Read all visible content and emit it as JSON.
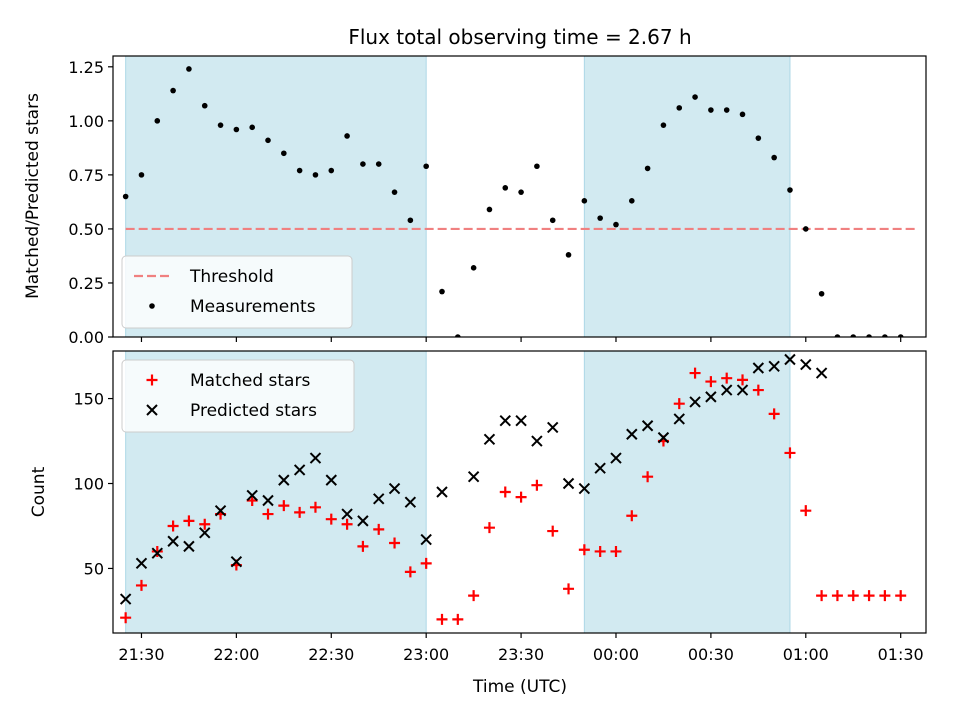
{
  "chart_data": [
    {
      "type": "scatter",
      "title": "Flux total observing time = 2.67 h",
      "xlabel": "",
      "ylabel": "Matched/Predicted stars",
      "xlim": [
        "21:21",
        "01:38"
      ],
      "ylim": [
        0,
        1.3
      ],
      "yticks": [
        0.0,
        0.25,
        0.5,
        0.75,
        1.0,
        1.25
      ],
      "ytick_labels": [
        "0.00",
        "0.25",
        "0.50",
        "0.75",
        "1.00",
        "1.25"
      ],
      "legend": "bottom-left",
      "grid": false,
      "shaded_spans": [
        [
          "21:25",
          "23:00"
        ],
        [
          "23:50",
          "00:55"
        ]
      ],
      "threshold": {
        "name": "Threshold",
        "value": 0.5,
        "x_range": [
          "21:25",
          "01:35"
        ],
        "color": "#f08080",
        "style": "dashed"
      },
      "series": [
        {
          "name": "Measurements",
          "color": "#000000",
          "marker": "dot",
          "points": [
            [
              "21:25",
              0.65
            ],
            [
              "21:30",
              0.75
            ],
            [
              "21:35",
              1.0
            ],
            [
              "21:40",
              1.14
            ],
            [
              "21:45",
              1.24
            ],
            [
              "21:50",
              1.07
            ],
            [
              "21:55",
              0.98
            ],
            [
              "22:00",
              0.96
            ],
            [
              "22:05",
              0.97
            ],
            [
              "22:10",
              0.91
            ],
            [
              "22:15",
              0.85
            ],
            [
              "22:20",
              0.77
            ],
            [
              "22:25",
              0.75
            ],
            [
              "22:30",
              0.77
            ],
            [
              "22:35",
              0.93
            ],
            [
              "22:40",
              0.8
            ],
            [
              "22:45",
              0.8
            ],
            [
              "22:50",
              0.67
            ],
            [
              "22:55",
              0.54
            ],
            [
              "23:00",
              0.79
            ],
            [
              "23:05",
              0.21
            ],
            [
              "23:10",
              0.0
            ],
            [
              "23:15",
              0.32
            ],
            [
              "23:20",
              0.59
            ],
            [
              "23:25",
              0.69
            ],
            [
              "23:30",
              0.67
            ],
            [
              "23:35",
              0.79
            ],
            [
              "23:40",
              0.54
            ],
            [
              "23:45",
              0.38
            ],
            [
              "23:50",
              0.63
            ],
            [
              "23:55",
              0.55
            ],
            [
              "00:00",
              0.52
            ],
            [
              "00:05",
              0.63
            ],
            [
              "00:10",
              0.78
            ],
            [
              "00:15",
              0.98
            ],
            [
              "00:20",
              1.06
            ],
            [
              "00:25",
              1.11
            ],
            [
              "00:30",
              1.05
            ],
            [
              "00:35",
              1.05
            ],
            [
              "00:40",
              1.03
            ],
            [
              "00:45",
              0.92
            ],
            [
              "00:50",
              0.83
            ],
            [
              "00:55",
              0.68
            ],
            [
              "01:00",
              0.5
            ],
            [
              "01:05",
              0.2
            ],
            [
              "01:10",
              0.0
            ],
            [
              "01:15",
              0.0
            ],
            [
              "01:20",
              0.0
            ],
            [
              "01:25",
              0.0
            ],
            [
              "01:30",
              0.0
            ]
          ]
        }
      ]
    },
    {
      "type": "scatter",
      "title": "",
      "xlabel": "Time (UTC)",
      "ylabel": "Count",
      "xlim": [
        "21:21",
        "01:38"
      ],
      "ylim": [
        12,
        178
      ],
      "yticks": [
        50,
        100,
        150
      ],
      "ytick_labels": [
        "50",
        "100",
        "150"
      ],
      "xticks": [
        "21:30",
        "22:00",
        "22:30",
        "23:00",
        "23:30",
        "00:00",
        "00:30",
        "01:00",
        "01:30"
      ],
      "xtick_labels": [
        "21:30",
        "22:00",
        "22:30",
        "23:00",
        "23:30",
        "00:00",
        "00:30",
        "01:00",
        "01:30"
      ],
      "legend": "top-left",
      "grid": false,
      "shaded_spans": [
        [
          "21:25",
          "23:00"
        ],
        [
          "23:50",
          "00:55"
        ]
      ],
      "series": [
        {
          "name": "Matched stars",
          "color": "#ff0000",
          "marker": "plus",
          "points": [
            [
              "21:25",
              21
            ],
            [
              "21:30",
              40
            ],
            [
              "21:35",
              60
            ],
            [
              "21:40",
              75
            ],
            [
              "21:45",
              78
            ],
            [
              "21:50",
              76
            ],
            [
              "21:55",
              82
            ],
            [
              "22:00",
              52
            ],
            [
              "22:05",
              90
            ],
            [
              "22:10",
              82
            ],
            [
              "22:15",
              87
            ],
            [
              "22:20",
              83
            ],
            [
              "22:25",
              86
            ],
            [
              "22:30",
              79
            ],
            [
              "22:35",
              76
            ],
            [
              "22:40",
              63
            ],
            [
              "22:45",
              73
            ],
            [
              "22:50",
              65
            ],
            [
              "22:55",
              48
            ],
            [
              "23:00",
              53
            ],
            [
              "23:05",
              20
            ],
            [
              "23:10",
              20
            ],
            [
              "23:15",
              34
            ],
            [
              "23:20",
              74
            ],
            [
              "23:25",
              95
            ],
            [
              "23:30",
              92
            ],
            [
              "23:35",
              99
            ],
            [
              "23:40",
              72
            ],
            [
              "23:45",
              38
            ],
            [
              "23:50",
              61
            ],
            [
              "23:55",
              60
            ],
            [
              "00:00",
              60
            ],
            [
              "00:05",
              81
            ],
            [
              "00:10",
              104
            ],
            [
              "00:15",
              125
            ],
            [
              "00:20",
              147
            ],
            [
              "00:25",
              165
            ],
            [
              "00:30",
              160
            ],
            [
              "00:35",
              162
            ],
            [
              "00:40",
              161
            ],
            [
              "00:45",
              155
            ],
            [
              "00:50",
              141
            ],
            [
              "00:55",
              118
            ],
            [
              "01:00",
              84
            ],
            [
              "01:05",
              34
            ],
            [
              "01:10",
              34
            ],
            [
              "01:15",
              34
            ],
            [
              "01:20",
              34
            ],
            [
              "01:25",
              34
            ],
            [
              "01:30",
              34
            ]
          ]
        },
        {
          "name": "Predicted stars",
          "color": "#000000",
          "marker": "x",
          "points": [
            [
              "21:25",
              32
            ],
            [
              "21:30",
              53
            ],
            [
              "21:35",
              59
            ],
            [
              "21:40",
              66
            ],
            [
              "21:45",
              63
            ],
            [
              "21:50",
              71
            ],
            [
              "21:55",
              84
            ],
            [
              "22:00",
              54
            ],
            [
              "22:05",
              93
            ],
            [
              "22:10",
              90
            ],
            [
              "22:15",
              102
            ],
            [
              "22:20",
              108
            ],
            [
              "22:25",
              115
            ],
            [
              "22:30",
              102
            ],
            [
              "22:35",
              82
            ],
            [
              "22:40",
              78
            ],
            [
              "22:45",
              91
            ],
            [
              "22:50",
              97
            ],
            [
              "22:55",
              89
            ],
            [
              "23:00",
              67
            ],
            [
              "23:05",
              95
            ],
            [
              "23:15",
              104
            ],
            [
              "23:20",
              126
            ],
            [
              "23:25",
              137
            ],
            [
              "23:30",
              137
            ],
            [
              "23:35",
              125
            ],
            [
              "23:40",
              133
            ],
            [
              "23:45",
              100
            ],
            [
              "23:50",
              97
            ],
            [
              "23:55",
              109
            ],
            [
              "00:00",
              115
            ],
            [
              "00:05",
              129
            ],
            [
              "00:10",
              134
            ],
            [
              "00:15",
              127
            ],
            [
              "00:20",
              138
            ],
            [
              "00:25",
              148
            ],
            [
              "00:30",
              151
            ],
            [
              "00:35",
              155
            ],
            [
              "00:40",
              155
            ],
            [
              "00:45",
              168
            ],
            [
              "00:50",
              169
            ],
            [
              "00:55",
              173
            ],
            [
              "01:00",
              170
            ],
            [
              "01:05",
              165
            ]
          ]
        }
      ]
    }
  ],
  "colors": {
    "span_fill": "#add8e6",
    "axis": "#000000"
  }
}
